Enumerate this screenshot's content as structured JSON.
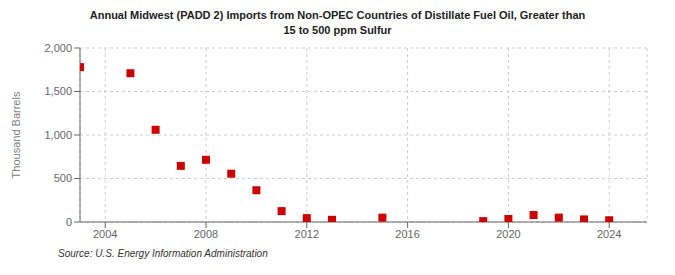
{
  "chart_data": {
    "type": "scatter",
    "title": "Annual Midwest (PADD 2) Imports from Non-OPEC Countries of Distillate Fuel Oil, Greater than\n15 to 500 ppm Sulfur",
    "ylabel": "Thousand Barrels",
    "annotations": [
      "Source: U.S. Energy Information Administration"
    ],
    "x": [
      2003,
      2005,
      2006,
      2007,
      2008,
      2009,
      2010,
      2011,
      2012,
      2013,
      2015,
      2019,
      2020,
      2021,
      2022,
      2023,
      2024
    ],
    "values": [
      1780,
      1710,
      1060,
      645,
      715,
      555,
      365,
      125,
      45,
      25,
      50,
      10,
      35,
      80,
      50,
      30,
      20
    ],
    "color": "#cc0000",
    "marker": "square",
    "xlim": [
      2003.0,
      2025.5
    ],
    "xticks": [
      2004,
      2008,
      2012,
      2016,
      2020,
      2024
    ],
    "ylim": [
      0,
      2000
    ],
    "yticks": [
      0,
      500,
      {
        "value": 1000,
        "label": "1,000"
      },
      {
        "value": 1500,
        "label": "1,500"
      },
      {
        "value": 2000,
        "label": "2,000"
      }
    ],
    "grid": true
  }
}
